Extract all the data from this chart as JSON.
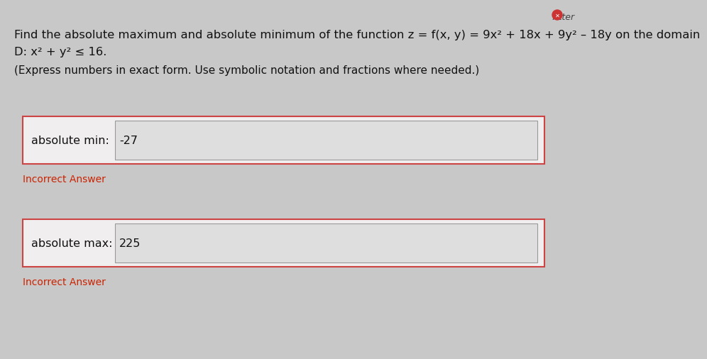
{
  "page_bg": "#c8c8c8",
  "title_line1": "Find the absolute maximum and absolute minimum of the function z = f(x, y) = 9x² + 18x + 9y² – 18y on the domain",
  "title_line2": "D: x² + y² ≤ 16.",
  "subtitle": "(Express numbers in exact form. Use symbolic notation and fractions where needed.)",
  "box1_label": "absolute min:",
  "box1_value": "-27",
  "box1_feedback": "Incorrect Answer",
  "box2_label": "absolute max:",
  "box2_value": "225",
  "box2_feedback": "Incorrect Answer",
  "feedback_color": "#cc2200",
  "box_border_color": "#cc4444",
  "box_bg_color": "#f0eeee",
  "input_bg_color": "#dedede",
  "text_color": "#111111",
  "top_right_text": "Atter",
  "top_right_color": "#444444",
  "title_fontsize": 11.8,
  "subtitle_fontsize": 11.0,
  "label_fontsize": 11.5,
  "value_fontsize": 11.5,
  "feedback_fontsize": 10.0
}
